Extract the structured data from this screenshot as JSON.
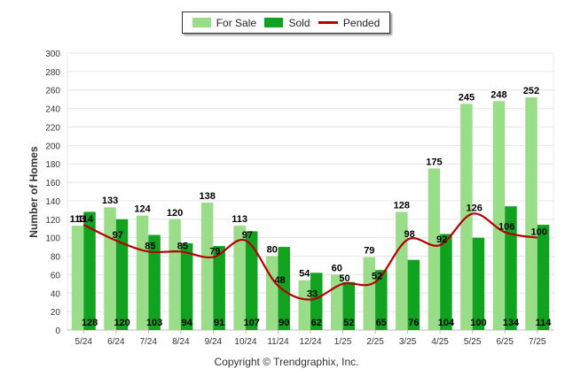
{
  "chart_data": {
    "type": "bar",
    "categories": [
      "5/24",
      "6/24",
      "7/24",
      "8/24",
      "9/24",
      "10/24",
      "11/24",
      "12/24",
      "1/25",
      "2/25",
      "3/25",
      "4/25",
      "5/25",
      "6/25",
      "7/25"
    ],
    "series": [
      {
        "name": "For Sale",
        "type": "bar",
        "color": "#99dd88",
        "values": [
          113,
          133,
          124,
          120,
          138,
          113,
          80,
          54,
          60,
          79,
          128,
          175,
          245,
          248,
          252
        ]
      },
      {
        "name": "Sold",
        "type": "bar",
        "color": "#11a320",
        "values": [
          128,
          120,
          103,
          94,
          91,
          107,
          90,
          62,
          52,
          65,
          76,
          104,
          100,
          134,
          114
        ]
      },
      {
        "name": "Pended",
        "type": "line",
        "color": "#b30000",
        "values": [
          114,
          97,
          85,
          85,
          79,
          97,
          48,
          33,
          50,
          52,
          98,
          92,
          126,
          106,
          100
        ]
      }
    ],
    "ylabel": "Number of Homes",
    "xlabel": "",
    "ylim": [
      0,
      300
    ],
    "yticks": [
      0,
      20,
      40,
      60,
      80,
      100,
      120,
      140,
      160,
      180,
      200,
      220,
      240,
      260,
      280,
      300
    ],
    "grid": true,
    "legend_position": "top-center"
  },
  "copyright": "Copyright © Trendgraphix, Inc."
}
